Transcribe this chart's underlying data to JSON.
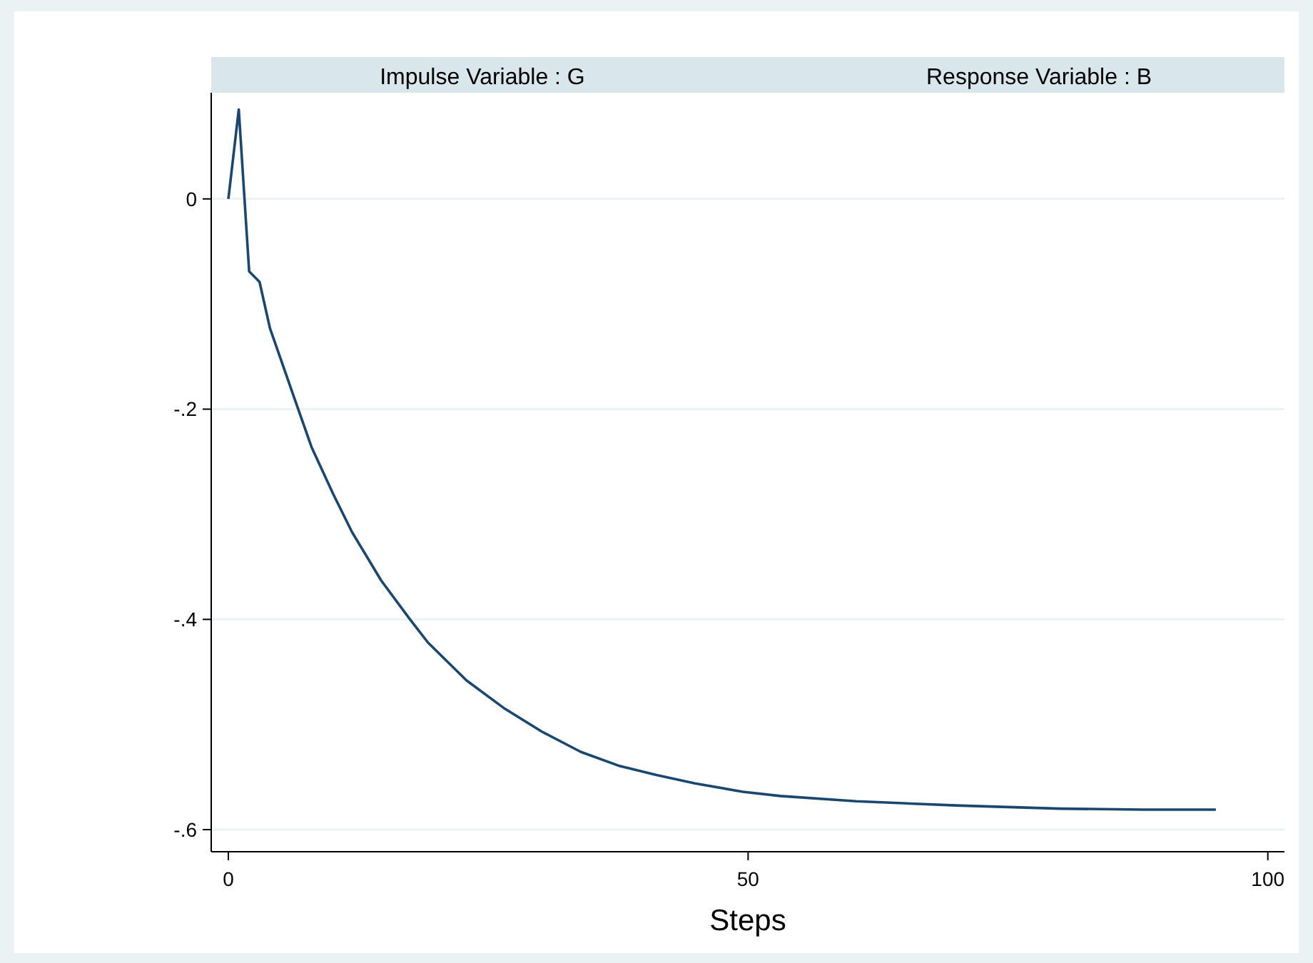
{
  "chart_data": {
    "type": "line",
    "title": "Impulse Variable : G",
    "subtitle": "Response Variable : B",
    "xlabel": "Steps",
    "x": [
      0,
      1,
      2,
      3,
      4,
      6.4,
      8,
      10.1,
      11.9,
      14.7,
      17.4,
      19.2,
      22.9,
      26.6,
      30.2,
      33.9,
      37.5,
      41.2,
      44.9,
      49.5,
      53.1,
      60.4,
      70,
      80,
      88,
      95
    ],
    "values": [
      0,
      0.085,
      -0.069,
      -0.079,
      -0.123,
      -0.191,
      -0.236,
      -0.281,
      -0.317,
      -0.363,
      -0.399,
      -0.422,
      -0.458,
      -0.485,
      -0.507,
      -0.526,
      -0.539,
      -0.548,
      -0.556,
      -0.564,
      -0.568,
      -0.573,
      -0.577,
      -0.58,
      -0.581,
      -0.581
    ],
    "color": "#1a476f",
    "xlim": [
      -1.65,
      101.6
    ],
    "ylim": [
      -0.621,
      0.101
    ],
    "xticks": [
      0,
      50,
      100
    ],
    "yticks": [
      {
        "value": 0,
        "label": "0"
      },
      {
        "value": -0.2,
        "label": "-.2"
      },
      {
        "value": -0.4,
        "label": "-.4"
      },
      {
        "value": -0.6,
        "label": "-.6"
      }
    ],
    "grid": "y"
  }
}
